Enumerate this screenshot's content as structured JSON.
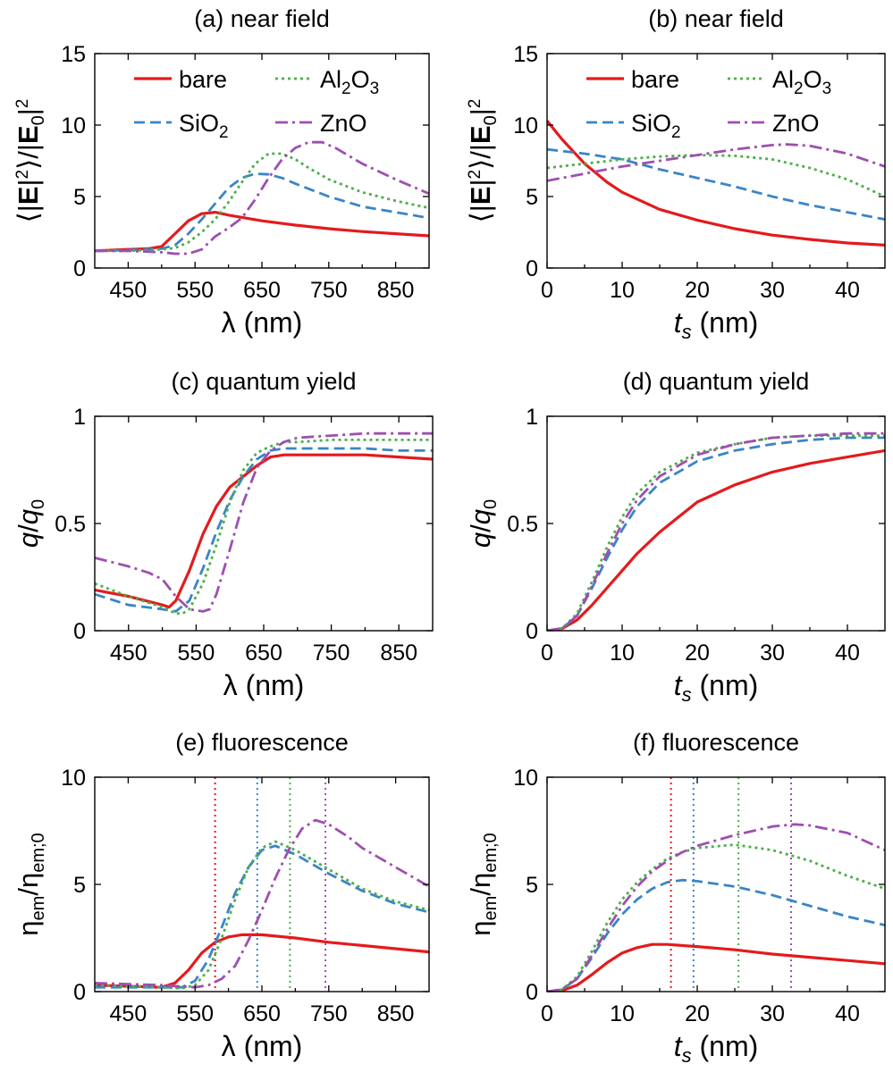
{
  "series_styles": {
    "bare": {
      "color": "#e41a1c",
      "dash": "",
      "width": 3.2
    },
    "SiO2": {
      "color": "#3a85c6",
      "dash": "12 6",
      "width": 2.8
    },
    "Al2O3": {
      "color": "#4daf4a",
      "dash": "3 4",
      "width": 2.8
    },
    "ZnO": {
      "color": "#9e4fb0",
      "dash": "14 5 3 5",
      "width": 2.8
    }
  },
  "legend": {
    "bare": "bare",
    "SiO2": "SiO",
    "SiO2_sub": "2",
    "Al2O3_a": "Al",
    "Al2O3_b": "2",
    "Al2O3_c": "O",
    "Al2O3_d": "3",
    "ZnO": "ZnO"
  },
  "labels": {
    "lambda_x": "λ (nm)",
    "ts_x_italic": "t",
    "ts_x_sub": "s",
    "ts_x_rest": " (nm)",
    "nf_y": "⟨|E|²⟩/|E₀|²",
    "q_y": "q/q₀",
    "eta_y": "η_em/η_em;0"
  },
  "chart_data": [
    {
      "id": "a",
      "type": "line",
      "title": "(a) near field",
      "xlabel": "λ (nm)",
      "ylabel": "⟨|E|²⟩/|E₀|²",
      "xlim": [
        400,
        900
      ],
      "ylim": [
        0,
        15
      ],
      "xticks": [
        450,
        550,
        650,
        750,
        850
      ],
      "yticks": [
        0,
        5,
        10,
        15
      ],
      "legend": true,
      "series": [
        {
          "name": "bare",
          "x": [
            400,
            450,
            480,
            500,
            520,
            540,
            560,
            580,
            600,
            650,
            700,
            750,
            800,
            850,
            900
          ],
          "y": [
            1.2,
            1.3,
            1.35,
            1.5,
            2.4,
            3.3,
            3.8,
            3.9,
            3.7,
            3.3,
            3.0,
            2.75,
            2.55,
            2.4,
            2.25
          ]
        },
        {
          "name": "SiO2",
          "x": [
            400,
            450,
            500,
            520,
            540,
            560,
            580,
            600,
            620,
            640,
            660,
            680,
            700,
            750,
            800,
            850,
            900
          ],
          "y": [
            1.2,
            1.25,
            1.35,
            1.6,
            2.4,
            3.4,
            4.5,
            5.6,
            6.3,
            6.6,
            6.55,
            6.3,
            5.9,
            5.0,
            4.3,
            3.9,
            3.5
          ]
        },
        {
          "name": "Al2O3",
          "x": [
            400,
            450,
            500,
            520,
            540,
            560,
            580,
            600,
            620,
            640,
            660,
            680,
            700,
            720,
            750,
            800,
            850,
            900
          ],
          "y": [
            1.2,
            1.2,
            1.3,
            1.4,
            1.8,
            2.5,
            3.4,
            4.6,
            6.0,
            7.3,
            8.0,
            8.0,
            7.6,
            7.0,
            6.2,
            5.3,
            4.7,
            4.2
          ]
        },
        {
          "name": "ZnO",
          "x": [
            400,
            450,
            500,
            520,
            540,
            560,
            580,
            600,
            620,
            640,
            660,
            680,
            700,
            720,
            740,
            760,
            800,
            850,
            900
          ],
          "y": [
            1.2,
            1.2,
            1.1,
            1.0,
            1.0,
            1.3,
            2.2,
            2.8,
            3.5,
            4.8,
            6.3,
            7.6,
            8.4,
            8.8,
            8.8,
            8.4,
            7.3,
            6.2,
            5.2
          ]
        }
      ]
    },
    {
      "id": "b",
      "type": "line",
      "title": "(b) near field",
      "xlabel": "t_s (nm)",
      "ylabel": "⟨|E|²⟩/|E₀|²",
      "xlim": [
        0,
        45
      ],
      "ylim": [
        0,
        15
      ],
      "xticks": [
        0,
        10,
        20,
        30,
        40
      ],
      "yticks": [
        0,
        5,
        10,
        15
      ],
      "legend": true,
      "series": [
        {
          "name": "bare",
          "x": [
            0,
            2,
            5,
            8,
            10,
            15,
            20,
            25,
            30,
            35,
            40,
            45
          ],
          "y": [
            10.3,
            9.0,
            7.3,
            6.0,
            5.3,
            4.1,
            3.35,
            2.75,
            2.3,
            2.0,
            1.75,
            1.6
          ]
        },
        {
          "name": "SiO2",
          "x": [
            0,
            5,
            10,
            15,
            20,
            25,
            30,
            35,
            40,
            45
          ],
          "y": [
            8.3,
            8.0,
            7.6,
            6.9,
            6.3,
            5.7,
            5.0,
            4.4,
            3.9,
            3.4
          ]
        },
        {
          "name": "Al2O3",
          "x": [
            0,
            5,
            10,
            15,
            20,
            25,
            30,
            35,
            40,
            45
          ],
          "y": [
            7.0,
            7.3,
            7.6,
            7.8,
            7.9,
            7.85,
            7.6,
            7.0,
            6.2,
            5.0
          ]
        },
        {
          "name": "ZnO",
          "x": [
            0,
            5,
            10,
            15,
            20,
            25,
            30,
            32,
            35,
            40,
            45
          ],
          "y": [
            6.1,
            6.6,
            7.1,
            7.5,
            7.9,
            8.3,
            8.6,
            8.65,
            8.55,
            8.0,
            7.1
          ]
        }
      ]
    },
    {
      "id": "c",
      "type": "line",
      "title": "(c) quantum yield",
      "xlabel": "λ (nm)",
      "ylabel": "q/q₀",
      "xlim": [
        400,
        900
      ],
      "ylim": [
        0,
        1
      ],
      "xticks": [
        450,
        550,
        650,
        750,
        850
      ],
      "yticks": [
        0,
        0.5,
        1
      ],
      "yticklabels": [
        "0",
        "0.5",
        "1"
      ],
      "legend": false,
      "series": [
        {
          "name": "bare",
          "x": [
            400,
            450,
            500,
            510,
            520,
            540,
            560,
            580,
            600,
            620,
            640,
            660,
            680,
            700,
            750,
            800,
            850,
            900
          ],
          "y": [
            0.19,
            0.16,
            0.12,
            0.11,
            0.14,
            0.28,
            0.45,
            0.58,
            0.67,
            0.72,
            0.77,
            0.81,
            0.82,
            0.82,
            0.82,
            0.82,
            0.81,
            0.8
          ]
        },
        {
          "name": "SiO2",
          "x": [
            400,
            450,
            500,
            520,
            540,
            560,
            580,
            600,
            620,
            640,
            660,
            680,
            700,
            750,
            800,
            850,
            900
          ],
          "y": [
            0.17,
            0.12,
            0.1,
            0.09,
            0.14,
            0.29,
            0.46,
            0.61,
            0.72,
            0.8,
            0.84,
            0.85,
            0.85,
            0.85,
            0.85,
            0.84,
            0.84
          ]
        },
        {
          "name": "Al2O3",
          "x": [
            400,
            450,
            500,
            520,
            530,
            540,
            560,
            580,
            600,
            620,
            640,
            660,
            680,
            700,
            750,
            800,
            850,
            900
          ],
          "y": [
            0.22,
            0.16,
            0.11,
            0.08,
            0.08,
            0.1,
            0.22,
            0.4,
            0.6,
            0.75,
            0.83,
            0.86,
            0.88,
            0.88,
            0.89,
            0.89,
            0.89,
            0.89
          ]
        },
        {
          "name": "ZnO",
          "x": [
            400,
            450,
            480,
            500,
            520,
            540,
            560,
            570,
            580,
            600,
            620,
            640,
            660,
            680,
            700,
            750,
            800,
            850,
            900
          ],
          "y": [
            0.34,
            0.3,
            0.27,
            0.24,
            0.16,
            0.1,
            0.09,
            0.1,
            0.17,
            0.38,
            0.6,
            0.76,
            0.84,
            0.88,
            0.9,
            0.91,
            0.92,
            0.92,
            0.92
          ]
        }
      ]
    },
    {
      "id": "d",
      "type": "line",
      "title": "(d) quantum yield",
      "xlabel": "t_s (nm)",
      "ylabel": "q/q₀",
      "xlim": [
        0,
        45
      ],
      "ylim": [
        0,
        1
      ],
      "xticks": [
        0,
        10,
        20,
        30,
        40
      ],
      "yticks": [
        0,
        0.5,
        1
      ],
      "yticklabels": [
        "0",
        "0.5",
        "1"
      ],
      "legend": false,
      "series": [
        {
          "name": "bare",
          "x": [
            0,
            2,
            4,
            6,
            8,
            10,
            12,
            15,
            20,
            25,
            30,
            35,
            40,
            45
          ],
          "y": [
            0,
            0.01,
            0.05,
            0.12,
            0.2,
            0.28,
            0.36,
            0.46,
            0.6,
            0.68,
            0.74,
            0.78,
            0.81,
            0.84
          ]
        },
        {
          "name": "SiO2",
          "x": [
            0,
            2,
            4,
            6,
            8,
            10,
            12,
            15,
            20,
            25,
            30,
            35,
            40,
            45
          ],
          "y": [
            0,
            0.01,
            0.07,
            0.2,
            0.34,
            0.47,
            0.58,
            0.69,
            0.79,
            0.84,
            0.87,
            0.89,
            0.9,
            0.9
          ]
        },
        {
          "name": "Al2O3",
          "x": [
            0,
            2,
            4,
            6,
            8,
            10,
            12,
            15,
            20,
            25,
            30,
            35,
            40,
            45
          ],
          "y": [
            0,
            0.01,
            0.08,
            0.23,
            0.39,
            0.53,
            0.64,
            0.74,
            0.83,
            0.87,
            0.9,
            0.91,
            0.91,
            0.91
          ]
        },
        {
          "name": "ZnO",
          "x": [
            0,
            2,
            4,
            6,
            8,
            10,
            12,
            15,
            20,
            25,
            30,
            35,
            40,
            45
          ],
          "y": [
            0,
            0.01,
            0.07,
            0.21,
            0.36,
            0.5,
            0.61,
            0.72,
            0.82,
            0.87,
            0.9,
            0.91,
            0.92,
            0.92
          ]
        }
      ]
    },
    {
      "id": "e",
      "type": "line",
      "title": "(e) fluorescence",
      "xlabel": "λ (nm)",
      "ylabel": "η_em/η_em;0",
      "xlim": [
        400,
        900
      ],
      "ylim": [
        0,
        10
      ],
      "xticks": [
        450,
        550,
        650,
        750,
        850
      ],
      "yticks": [
        0,
        5,
        10
      ],
      "legend": false,
      "vlines": [
        {
          "name": "bare",
          "x": 580
        },
        {
          "name": "SiO2",
          "x": 643
        },
        {
          "name": "Al2O3",
          "x": 692
        },
        {
          "name": "ZnO",
          "x": 745
        }
      ],
      "series": [
        {
          "name": "bare",
          "x": [
            400,
            450,
            500,
            520,
            540,
            560,
            580,
            600,
            620,
            650,
            700,
            750,
            800,
            850,
            900
          ],
          "y": [
            0.3,
            0.25,
            0.2,
            0.4,
            1.0,
            1.8,
            2.3,
            2.55,
            2.65,
            2.65,
            2.5,
            2.3,
            2.15,
            2.0,
            1.85
          ]
        },
        {
          "name": "SiO2",
          "x": [
            400,
            450,
            500,
            530,
            550,
            570,
            590,
            610,
            630,
            650,
            670,
            700,
            750,
            800,
            850,
            900
          ],
          "y": [
            0.2,
            0.2,
            0.2,
            0.2,
            0.5,
            1.5,
            3.0,
            4.6,
            5.8,
            6.6,
            6.8,
            6.4,
            5.5,
            4.7,
            4.1,
            3.7
          ]
        },
        {
          "name": "Al2O3",
          "x": [
            400,
            450,
            500,
            530,
            550,
            570,
            590,
            610,
            630,
            650,
            670,
            700,
            750,
            800,
            850,
            900
          ],
          "y": [
            0.3,
            0.25,
            0.2,
            0.15,
            0.3,
            1.0,
            2.5,
            4.3,
            5.8,
            6.7,
            7.0,
            6.6,
            5.7,
            4.8,
            4.2,
            3.8
          ]
        },
        {
          "name": "ZnO",
          "x": [
            400,
            450,
            500,
            550,
            570,
            590,
            610,
            630,
            650,
            670,
            690,
            710,
            730,
            750,
            780,
            800,
            850,
            900
          ],
          "y": [
            0.4,
            0.35,
            0.3,
            0.2,
            0.3,
            0.6,
            1.2,
            2.4,
            3.8,
            5.3,
            6.6,
            7.6,
            8.0,
            7.8,
            7.2,
            6.7,
            5.8,
            4.9
          ]
        }
      ]
    },
    {
      "id": "f",
      "type": "line",
      "title": "(f) fluorescence",
      "xlabel": "t_s (nm)",
      "ylabel": "η_em/η_em;0",
      "xlim": [
        0,
        45
      ],
      "ylim": [
        0,
        10
      ],
      "xticks": [
        0,
        10,
        20,
        30,
        40
      ],
      "yticks": [
        0,
        5,
        10
      ],
      "legend": false,
      "vlines": [
        {
          "name": "bare",
          "x": 16.5
        },
        {
          "name": "SiO2",
          "x": 19.5
        },
        {
          "name": "Al2O3",
          "x": 25.5
        },
        {
          "name": "ZnO",
          "x": 32.5
        }
      ],
      "series": [
        {
          "name": "bare",
          "x": [
            0,
            2,
            4,
            6,
            8,
            10,
            12,
            14,
            16,
            20,
            25,
            30,
            35,
            40,
            45
          ],
          "y": [
            0,
            0.05,
            0.3,
            0.8,
            1.35,
            1.8,
            2.05,
            2.2,
            2.2,
            2.1,
            1.95,
            1.75,
            1.6,
            1.45,
            1.3
          ]
        },
        {
          "name": "SiO2",
          "x": [
            0,
            2,
            4,
            6,
            8,
            10,
            12,
            14,
            16,
            18,
            20,
            25,
            30,
            35,
            40,
            45
          ],
          "y": [
            0,
            0.1,
            0.6,
            1.6,
            2.7,
            3.6,
            4.3,
            4.8,
            5.1,
            5.2,
            5.15,
            4.9,
            4.5,
            4.0,
            3.5,
            3.1
          ]
        },
        {
          "name": "Al2O3",
          "x": [
            0,
            2,
            4,
            6,
            8,
            10,
            12,
            14,
            16,
            18,
            20,
            25,
            30,
            35,
            40,
            45
          ],
          "y": [
            0,
            0.1,
            0.7,
            1.9,
            3.2,
            4.3,
            5.1,
            5.7,
            6.2,
            6.5,
            6.7,
            6.85,
            6.6,
            6.1,
            5.4,
            4.8
          ]
        },
        {
          "name": "ZnO",
          "x": [
            0,
            2,
            4,
            6,
            8,
            10,
            12,
            14,
            16,
            18,
            20,
            25,
            30,
            33,
            35,
            40,
            45
          ],
          "y": [
            0,
            0.1,
            0.6,
            1.7,
            2.9,
            4.0,
            4.9,
            5.6,
            6.1,
            6.5,
            6.8,
            7.3,
            7.7,
            7.8,
            7.75,
            7.4,
            6.6
          ]
        }
      ]
    }
  ]
}
